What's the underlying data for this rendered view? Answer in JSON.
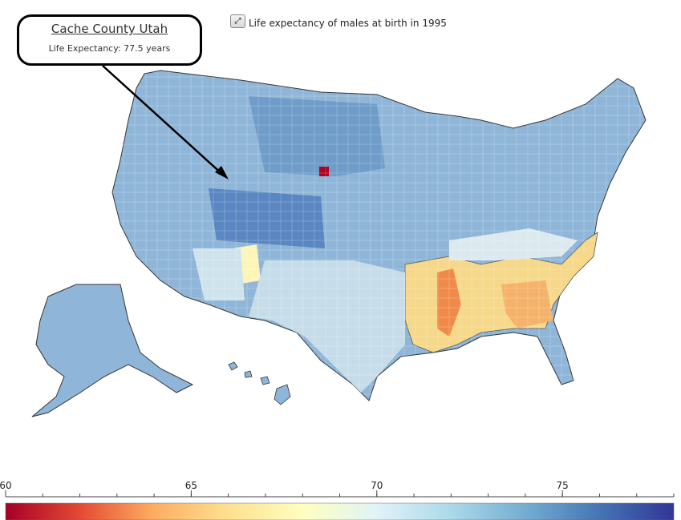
{
  "title": "Life expectancy of males at birth in 1995",
  "expand_icon": "expand-arrows-icon",
  "tooltip": {
    "county": "Cache County Utah",
    "life_expectancy": "Life Expectancy: 77.5 years"
  },
  "legend": {
    "ticks": [
      "60",
      "65",
      "70",
      "75"
    ],
    "min": 60,
    "max": 78,
    "colors": [
      "#a50026",
      "#e34a33",
      "#fdae61",
      "#fee090",
      "#ffffbf",
      "#e0f3f8",
      "#abd9e9",
      "#74add1",
      "#4575b4",
      "#313695"
    ]
  }
}
